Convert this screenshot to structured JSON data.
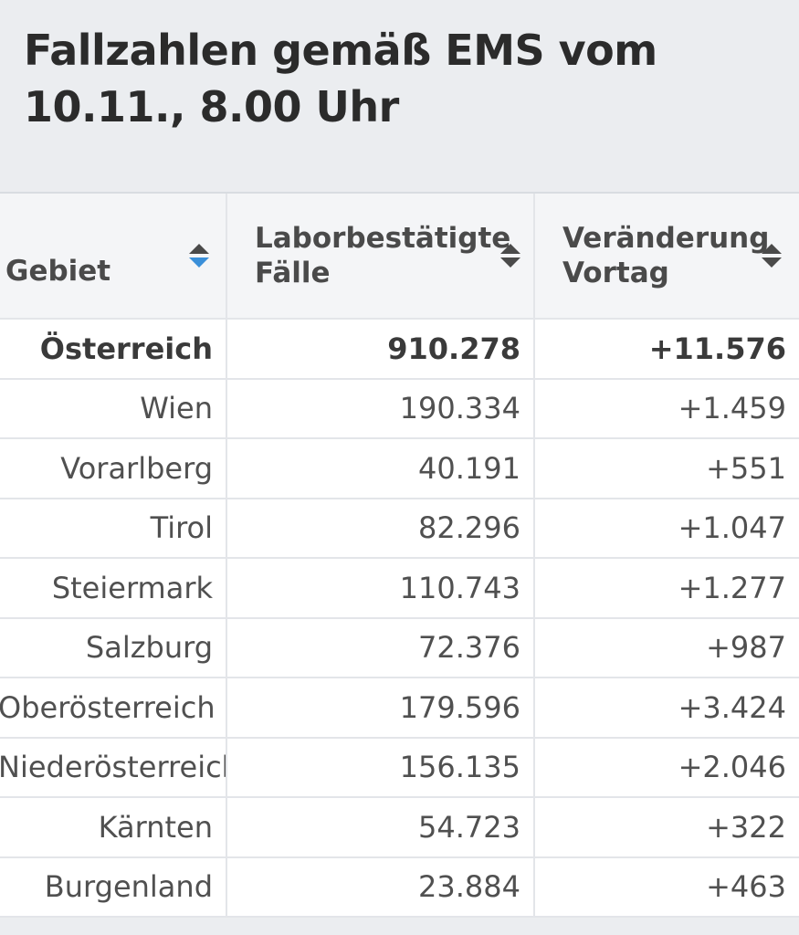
{
  "title": "Fallzahlen gemäß EMS vom 10.11., 8.00 Uhr",
  "table": {
    "headers": {
      "gebiet": "Gebiet",
      "faelle_line1": "Laborbestätigte",
      "faelle_line2": "Fälle",
      "diff_line1": "Veränderung",
      "diff_line2": "Vortag"
    },
    "sort_icons": {
      "gebiet": "sort-ascending-icon",
      "faelle": "sort-icon",
      "diff": "sort-icon"
    },
    "active_sort_color": "#3a8fd9",
    "inactive_sort_color": "#4a4a4a",
    "rows": [
      {
        "gebiet": "Österreich",
        "faelle": "910.278",
        "diff": "+11.576",
        "total": true
      },
      {
        "gebiet": "Wien",
        "faelle": "190.334",
        "diff": "+1.459"
      },
      {
        "gebiet": "Vorarlberg",
        "faelle": "40.191",
        "diff": "+551"
      },
      {
        "gebiet": "Tirol",
        "faelle": "82.296",
        "diff": "+1.047"
      },
      {
        "gebiet": "Steiermark",
        "faelle": "110.743",
        "diff": "+1.277"
      },
      {
        "gebiet": "Salzburg",
        "faelle": "72.376",
        "diff": "+987"
      },
      {
        "gebiet": "Oberösterreich",
        "faelle": "179.596",
        "diff": "+3.424"
      },
      {
        "gebiet": "Niederösterreich",
        "faelle": "156.135",
        "diff": "+2.046"
      },
      {
        "gebiet": "Kärnten",
        "faelle": "54.723",
        "diff": "+322"
      },
      {
        "gebiet": "Burgenland",
        "faelle": "23.884",
        "diff": "+463"
      }
    ]
  }
}
